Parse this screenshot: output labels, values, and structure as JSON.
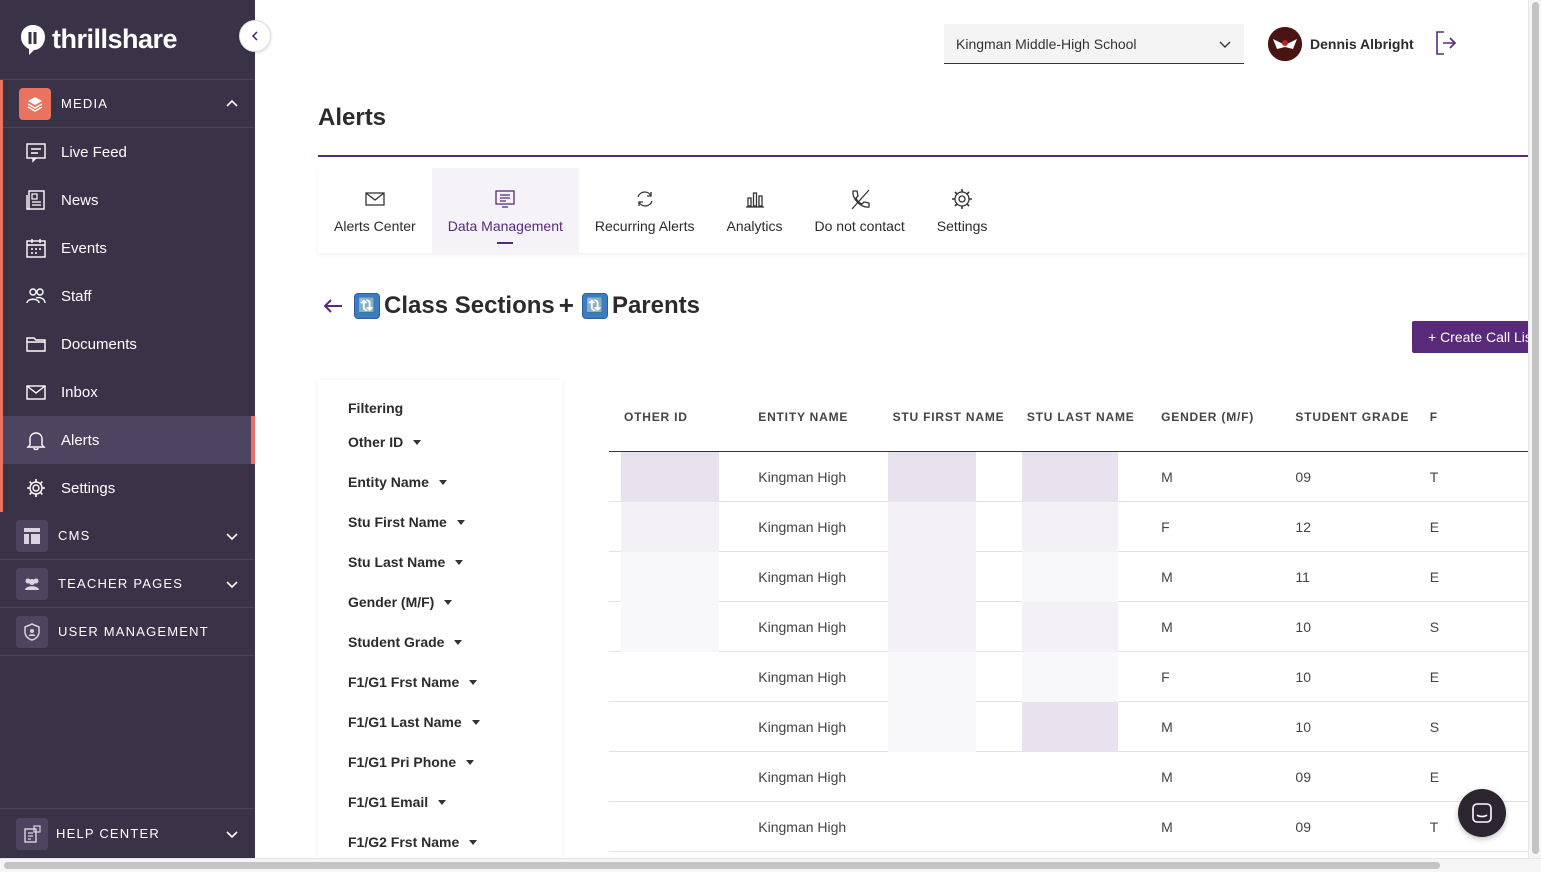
{
  "brand": {
    "name": "thrillshare"
  },
  "sidebar": {
    "media_label": "MEDIA",
    "items": [
      {
        "label": "Live Feed",
        "icon": "live-feed-icon"
      },
      {
        "label": "News",
        "icon": "news-icon"
      },
      {
        "label": "Events",
        "icon": "calendar-icon"
      },
      {
        "label": "Staff",
        "icon": "staff-icon"
      },
      {
        "label": "Documents",
        "icon": "folder-icon"
      },
      {
        "label": "Inbox",
        "icon": "envelope-icon"
      },
      {
        "label": "Alerts",
        "icon": "bell-icon"
      },
      {
        "label": "Settings",
        "icon": "gear-icon"
      }
    ],
    "cms_label": "CMS",
    "teacher_pages_label": "TEACHER PAGES",
    "user_management_label": "USER MANAGEMENT",
    "help_center_label": "HELP CENTER",
    "accent_color": "#e9735e",
    "bg_color": "#3a3247"
  },
  "topbar": {
    "school": "Kingman Middle-High School",
    "user_name": "Dennis Albright"
  },
  "page": {
    "title": "Alerts"
  },
  "tabs": [
    {
      "label": "Alerts Center",
      "icon": "envelope-icon"
    },
    {
      "label": "Data Management",
      "icon": "data-management-icon"
    },
    {
      "label": "Recurring Alerts",
      "icon": "refresh-icon"
    },
    {
      "label": "Analytics",
      "icon": "bar-chart-icon"
    },
    {
      "label": "Do not contact",
      "icon": "no-phone-icon"
    },
    {
      "label": "Settings",
      "icon": "gear-icon"
    }
  ],
  "subhead": {
    "left": "Class Sections",
    "plus": "+",
    "right": "Parents",
    "badge": "🔃"
  },
  "create_button": "+ Create Call List",
  "filtering": {
    "title": "Filtering",
    "items": [
      "Other ID",
      "Entity Name",
      "Stu First Name",
      "Stu Last Name",
      "Gender (M/F)",
      "Student Grade",
      "F1/G1 Frst Name",
      "F1/G1 Last Name",
      "F1/G1 Pri Phone",
      "F1/G1 Email",
      "F1/G2 Frst Name"
    ]
  },
  "table": {
    "columns": [
      "OTHER ID",
      "ENTITY NAME",
      "STU FIRST NAME",
      "STU LAST NAME",
      "GENDER (M/F)",
      "STUDENT GRADE",
      "F"
    ],
    "rows": [
      {
        "entity": "Kingman High",
        "gender": "M",
        "grade": "09",
        "next": "T"
      },
      {
        "entity": "Kingman High",
        "gender": "F",
        "grade": "12",
        "next": "E"
      },
      {
        "entity": "Kingman High",
        "gender": "M",
        "grade": "11",
        "next": "E"
      },
      {
        "entity": "Kingman High",
        "gender": "M",
        "grade": "10",
        "next": "S"
      },
      {
        "entity": "Kingman High",
        "gender": "F",
        "grade": "10",
        "next": "E"
      },
      {
        "entity": "Kingman High",
        "gender": "M",
        "grade": "10",
        "next": "S"
      },
      {
        "entity": "Kingman High",
        "gender": "M",
        "grade": "09",
        "next": "E"
      },
      {
        "entity": "Kingman High",
        "gender": "M",
        "grade": "09",
        "next": "T"
      }
    ]
  },
  "accent": "#5a2a7a"
}
